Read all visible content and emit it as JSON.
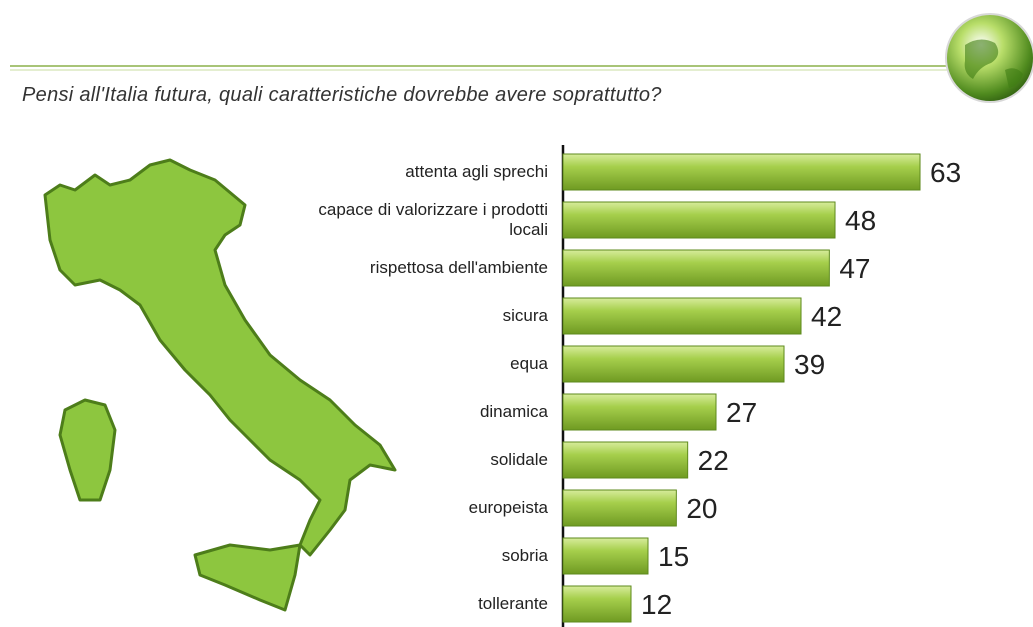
{
  "chart_data": {
    "type": "bar",
    "title": "Pensi all'Italia futura, quali caratteristiche dovrebbe avere soprattutto?",
    "categories": [
      "attenta agli sprechi",
      "capace di valorizzare i prodotti locali",
      "rispettosa dell'ambiente",
      "sicura",
      "equa",
      "dinamica",
      "solidale",
      "europeista",
      "sobria",
      "tollerante"
    ],
    "values": [
      63,
      48,
      47,
      42,
      39,
      27,
      22,
      20,
      15,
      12
    ],
    "color": "#9cc63e"
  }
}
